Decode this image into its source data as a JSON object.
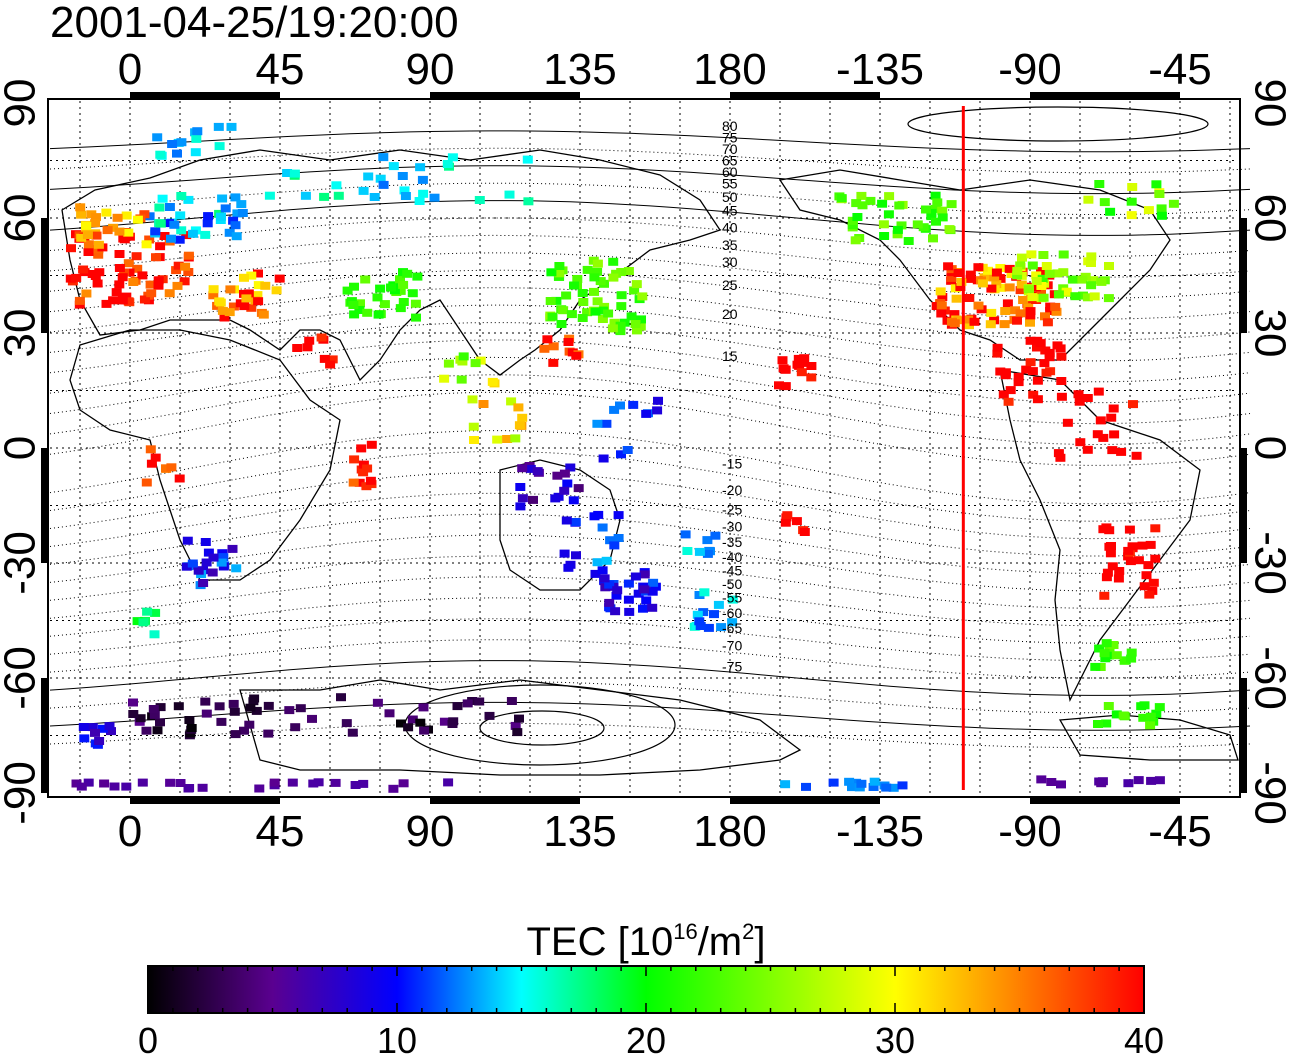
{
  "title": "2001-04-25/19:20:00",
  "map": {
    "top_lon_ticks": [
      "0",
      "45",
      "90",
      "135",
      "180",
      "-135",
      "-90",
      "-45"
    ],
    "bottom_lon_ticks": [
      "0",
      "45",
      "90",
      "135",
      "180",
      "-135",
      "-90",
      "-45"
    ],
    "left_lat_ticks": [
      "90",
      "60",
      "30",
      "0",
      "-30",
      "-60",
      "-90"
    ],
    "right_lat_ticks": [
      "90",
      "60",
      "30",
      "0",
      "-30",
      "-60",
      "-90"
    ],
    "contour_labels": [
      "80",
      "75",
      "70",
      "65",
      "60",
      "55",
      "50",
      "45",
      "40",
      "35",
      "30",
      "25",
      "20",
      "15",
      "-15",
      "-20",
      "-25",
      "-30",
      "-35",
      "-40",
      "-45",
      "-50",
      "-55",
      "-60",
      "-65",
      "-70",
      "-75"
    ],
    "terminator_longitude": -110,
    "colors": {
      "terminator": "#ff0000",
      "frame": "#000000"
    }
  },
  "colorbar": {
    "title_main": "TEC  [10",
    "title_sup1": "16",
    "title_mid": "/m",
    "title_sup2": "2",
    "title_end": "]",
    "ticks": [
      "0",
      "10",
      "20",
      "30",
      "40"
    ],
    "min": 0,
    "max": 40,
    "colors": [
      "#000000",
      "#5a0090",
      "#0000ff",
      "#00ffff",
      "#00ff00",
      "#ffff00",
      "#ff0000"
    ]
  }
}
